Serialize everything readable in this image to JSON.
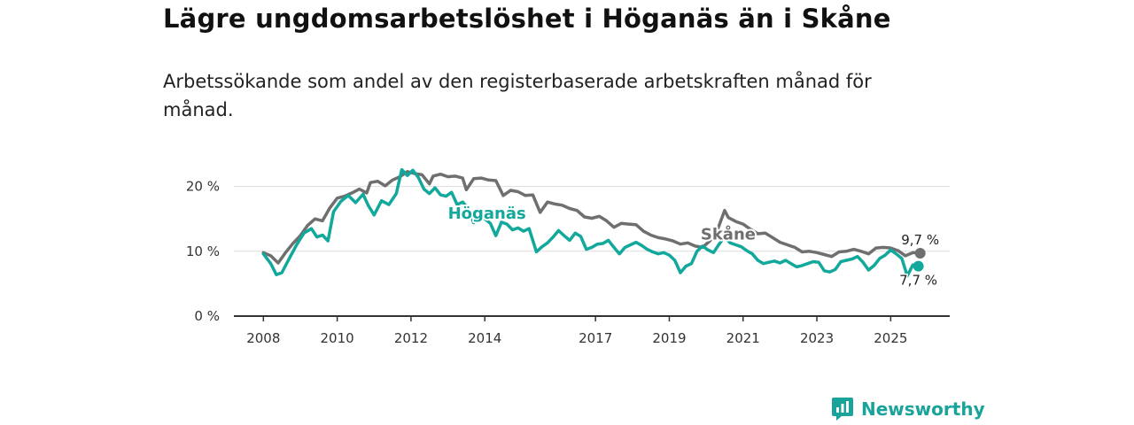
{
  "header": {
    "title": "Lägre ungdomsarbetslöshet i Höganäs än i Skåne",
    "subtitle": "Arbetssökande som andel av den registerbaserade arbetskraften månad för månad."
  },
  "brand": {
    "name": "Newsworthy"
  },
  "colors": {
    "hoganas": "#12a89b",
    "skane": "#6f6f6f",
    "grid": "#dddddd",
    "axis": "#333333"
  },
  "chart_data": {
    "type": "line",
    "title": "Lägre ungdomsarbetslöshet i Höganäs än i Skåne",
    "xlabel": "",
    "ylabel": "",
    "ylim": [
      0,
      25
    ],
    "xlim": [
      2007.2,
      2026.6
    ],
    "y_ticks": [
      {
        "value": 0,
        "label": "0 %"
      },
      {
        "value": 10,
        "label": "10 %"
      },
      {
        "value": 20,
        "label": "20 %"
      }
    ],
    "x_ticks": [
      {
        "value": 2008,
        "label": "2008"
      },
      {
        "value": 2010,
        "label": "2010"
      },
      {
        "value": 2012,
        "label": "2012"
      },
      {
        "value": 2014,
        "label": "2014"
      },
      {
        "value": 2017,
        "label": "2017"
      },
      {
        "value": 2019,
        "label": "2019"
      },
      {
        "value": 2021,
        "label": "2021"
      },
      {
        "value": 2023,
        "label": "2023"
      },
      {
        "value": 2025,
        "label": "2025"
      }
    ],
    "series": [
      {
        "name": "Skåne",
        "color": "#6f6f6f",
        "end_label": "9,7 %",
        "points": [
          [
            2008.0,
            9.8
          ],
          [
            2008.2,
            9.3
          ],
          [
            2008.4,
            8.2
          ],
          [
            2008.6,
            9.8
          ],
          [
            2008.8,
            11.2
          ],
          [
            2009.0,
            12.4
          ],
          [
            2009.2,
            14.0
          ],
          [
            2009.4,
            15.0
          ],
          [
            2009.6,
            14.7
          ],
          [
            2009.8,
            16.7
          ],
          [
            2010.0,
            18.2
          ],
          [
            2010.2,
            18.5
          ],
          [
            2010.4,
            19.0
          ],
          [
            2010.6,
            19.6
          ],
          [
            2010.8,
            19.0
          ],
          [
            2010.9,
            20.6
          ],
          [
            2011.1,
            20.8
          ],
          [
            2011.3,
            20.1
          ],
          [
            2011.5,
            21.0
          ],
          [
            2011.7,
            21.5
          ],
          [
            2011.9,
            22.3
          ],
          [
            2012.1,
            22.0
          ],
          [
            2012.3,
            21.8
          ],
          [
            2012.5,
            20.4
          ],
          [
            2012.6,
            21.6
          ],
          [
            2012.8,
            21.9
          ],
          [
            2013.0,
            21.5
          ],
          [
            2013.2,
            21.6
          ],
          [
            2013.4,
            21.3
          ],
          [
            2013.5,
            19.5
          ],
          [
            2013.7,
            21.2
          ],
          [
            2013.9,
            21.3
          ],
          [
            2014.1,
            21.0
          ],
          [
            2014.3,
            20.9
          ],
          [
            2014.5,
            18.6
          ],
          [
            2014.7,
            19.4
          ],
          [
            2014.9,
            19.2
          ],
          [
            2015.1,
            18.6
          ],
          [
            2015.3,
            18.7
          ],
          [
            2015.5,
            16.0
          ],
          [
            2015.7,
            17.6
          ],
          [
            2015.9,
            17.3
          ],
          [
            2016.1,
            17.1
          ],
          [
            2016.3,
            16.6
          ],
          [
            2016.5,
            16.3
          ],
          [
            2016.7,
            15.3
          ],
          [
            2016.9,
            15.1
          ],
          [
            2017.1,
            15.4
          ],
          [
            2017.3,
            14.7
          ],
          [
            2017.5,
            13.7
          ],
          [
            2017.7,
            14.3
          ],
          [
            2017.9,
            14.2
          ],
          [
            2018.1,
            14.1
          ],
          [
            2018.3,
            13.1
          ],
          [
            2018.5,
            12.5
          ],
          [
            2018.7,
            12.1
          ],
          [
            2018.9,
            11.9
          ],
          [
            2019.1,
            11.6
          ],
          [
            2019.3,
            11.1
          ],
          [
            2019.5,
            11.3
          ],
          [
            2019.7,
            10.8
          ],
          [
            2019.9,
            10.6
          ],
          [
            2020.1,
            11.6
          ],
          [
            2020.3,
            13.2
          ],
          [
            2020.5,
            16.3
          ],
          [
            2020.6,
            15.2
          ],
          [
            2020.8,
            14.6
          ],
          [
            2021.0,
            14.2
          ],
          [
            2021.2,
            13.4
          ],
          [
            2021.4,
            12.7
          ],
          [
            2021.6,
            12.8
          ],
          [
            2021.8,
            12.1
          ],
          [
            2022.0,
            11.4
          ],
          [
            2022.2,
            11.0
          ],
          [
            2022.4,
            10.6
          ],
          [
            2022.6,
            9.9
          ],
          [
            2022.8,
            10.0
          ],
          [
            2023.0,
            9.8
          ],
          [
            2023.2,
            9.5
          ],
          [
            2023.4,
            9.2
          ],
          [
            2023.6,
            9.9
          ],
          [
            2023.8,
            10.0
          ],
          [
            2024.0,
            10.3
          ],
          [
            2024.2,
            10.0
          ],
          [
            2024.4,
            9.6
          ],
          [
            2024.6,
            10.5
          ],
          [
            2024.8,
            10.6
          ],
          [
            2025.0,
            10.5
          ],
          [
            2025.2,
            10.1
          ],
          [
            2025.4,
            9.3
          ],
          [
            2025.6,
            9.8
          ],
          [
            2025.8,
            9.7
          ]
        ]
      },
      {
        "name": "Höganäs",
        "color": "#12a89b",
        "end_label": "7,7 %",
        "points": [
          [
            2008.0,
            9.6
          ],
          [
            2008.2,
            8.1
          ],
          [
            2008.35,
            6.4
          ],
          [
            2008.5,
            6.7
          ],
          [
            2008.7,
            8.9
          ],
          [
            2008.9,
            11.0
          ],
          [
            2009.1,
            12.8
          ],
          [
            2009.3,
            13.5
          ],
          [
            2009.45,
            12.2
          ],
          [
            2009.6,
            12.5
          ],
          [
            2009.75,
            11.6
          ],
          [
            2009.9,
            16.1
          ],
          [
            2010.1,
            17.7
          ],
          [
            2010.3,
            18.6
          ],
          [
            2010.5,
            17.5
          ],
          [
            2010.7,
            18.8
          ],
          [
            2010.85,
            17.0
          ],
          [
            2011.0,
            15.6
          ],
          [
            2011.2,
            17.8
          ],
          [
            2011.4,
            17.2
          ],
          [
            2011.6,
            18.9
          ],
          [
            2011.75,
            22.6
          ],
          [
            2011.9,
            21.7
          ],
          [
            2012.05,
            22.5
          ],
          [
            2012.2,
            21.4
          ],
          [
            2012.35,
            19.6
          ],
          [
            2012.5,
            18.9
          ],
          [
            2012.65,
            19.8
          ],
          [
            2012.8,
            18.7
          ],
          [
            2012.95,
            18.5
          ],
          [
            2013.1,
            19.1
          ],
          [
            2013.25,
            17.2
          ],
          [
            2013.4,
            17.6
          ],
          [
            2013.55,
            16.6
          ],
          [
            2013.7,
            14.4
          ],
          [
            2013.85,
            15.5
          ],
          [
            2014.0,
            15.0
          ],
          [
            2014.15,
            14.3
          ],
          [
            2014.3,
            12.4
          ],
          [
            2014.45,
            14.5
          ],
          [
            2014.6,
            14.2
          ],
          [
            2014.75,
            13.3
          ],
          [
            2014.9,
            13.6
          ],
          [
            2015.05,
            13.1
          ],
          [
            2015.2,
            13.5
          ],
          [
            2015.4,
            9.9
          ],
          [
            2015.55,
            10.7
          ],
          [
            2015.7,
            11.3
          ],
          [
            2015.85,
            12.2
          ],
          [
            2016.0,
            13.2
          ],
          [
            2016.15,
            12.4
          ],
          [
            2016.3,
            11.7
          ],
          [
            2016.45,
            12.8
          ],
          [
            2016.6,
            12.3
          ],
          [
            2016.75,
            10.3
          ],
          [
            2016.9,
            10.6
          ],
          [
            2017.05,
            11.1
          ],
          [
            2017.2,
            11.2
          ],
          [
            2017.35,
            11.7
          ],
          [
            2017.5,
            10.6
          ],
          [
            2017.65,
            9.6
          ],
          [
            2017.8,
            10.6
          ],
          [
            2017.95,
            11.0
          ],
          [
            2018.1,
            11.4
          ],
          [
            2018.25,
            10.9
          ],
          [
            2018.4,
            10.3
          ],
          [
            2018.55,
            9.9
          ],
          [
            2018.7,
            9.6
          ],
          [
            2018.85,
            9.8
          ],
          [
            2019.0,
            9.4
          ],
          [
            2019.15,
            8.6
          ],
          [
            2019.3,
            6.7
          ],
          [
            2019.45,
            7.7
          ],
          [
            2019.6,
            8.1
          ],
          [
            2019.75,
            10.0
          ],
          [
            2019.9,
            10.8
          ],
          [
            2020.05,
            10.2
          ],
          [
            2020.2,
            9.8
          ],
          [
            2020.35,
            11.1
          ],
          [
            2020.5,
            12.2
          ],
          [
            2020.65,
            11.3
          ],
          [
            2020.8,
            11.0
          ],
          [
            2020.95,
            10.7
          ],
          [
            2021.1,
            10.1
          ],
          [
            2021.25,
            9.6
          ],
          [
            2021.4,
            8.6
          ],
          [
            2021.55,
            8.1
          ],
          [
            2021.7,
            8.3
          ],
          [
            2021.85,
            8.5
          ],
          [
            2022.0,
            8.2
          ],
          [
            2022.15,
            8.6
          ],
          [
            2022.3,
            8.1
          ],
          [
            2022.45,
            7.6
          ],
          [
            2022.6,
            7.8
          ],
          [
            2022.75,
            8.1
          ],
          [
            2022.9,
            8.4
          ],
          [
            2023.05,
            8.3
          ],
          [
            2023.2,
            7.0
          ],
          [
            2023.35,
            6.8
          ],
          [
            2023.5,
            7.2
          ],
          [
            2023.65,
            8.4
          ],
          [
            2023.8,
            8.6
          ],
          [
            2023.95,
            8.8
          ],
          [
            2024.1,
            9.2
          ],
          [
            2024.25,
            8.3
          ],
          [
            2024.4,
            7.1
          ],
          [
            2024.55,
            7.8
          ],
          [
            2024.7,
            8.9
          ],
          [
            2024.85,
            9.4
          ],
          [
            2025.0,
            10.2
          ],
          [
            2025.15,
            9.6
          ],
          [
            2025.3,
            8.9
          ],
          [
            2025.45,
            6.2
          ],
          [
            2025.6,
            7.9
          ],
          [
            2025.75,
            7.7
          ]
        ]
      }
    ],
    "annotations": [
      {
        "text": "Höganäs",
        "series": "Höganäs",
        "x": 2013.0,
        "y": 15.0
      },
      {
        "text": "Skåne",
        "series": "Skåne",
        "x": 2019.85,
        "y": 11.8
      }
    ]
  }
}
